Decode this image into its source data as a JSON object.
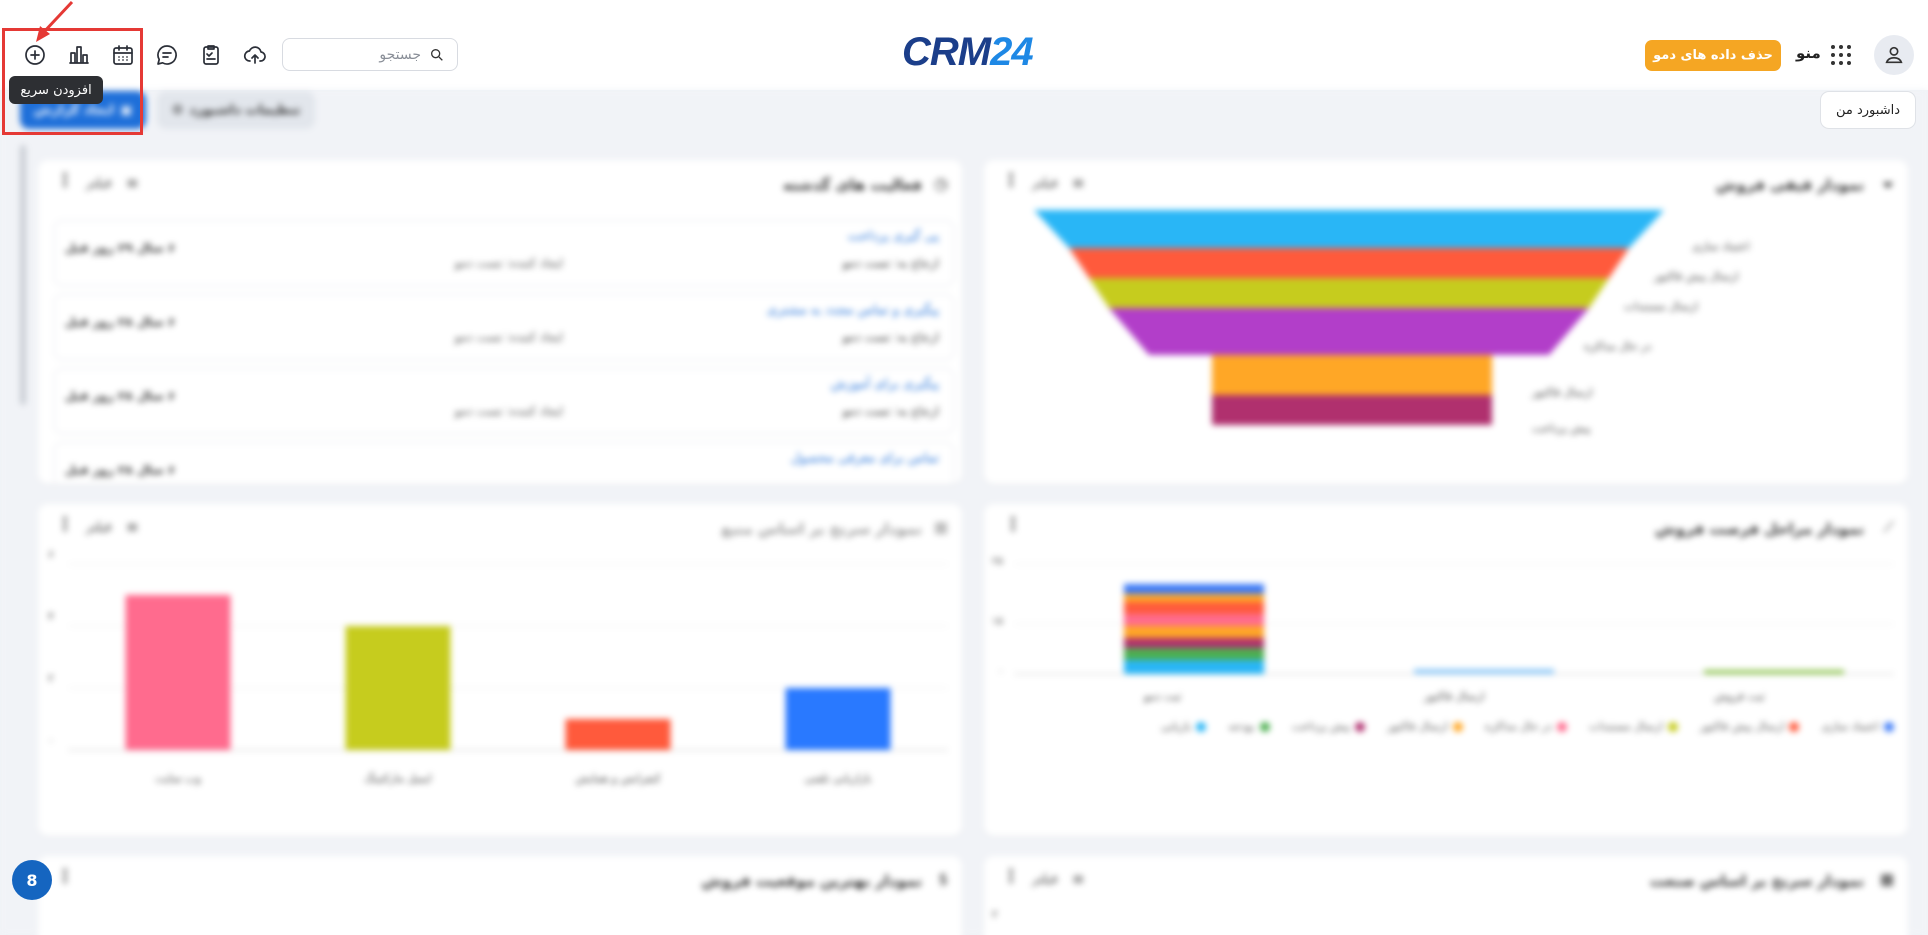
{
  "toolbar": {
    "search_placeholder": "جستجو",
    "tooltip": "افزودن سریع",
    "demo_button": "حذف داده های دمو",
    "menu_label": "منو"
  },
  "logo": {
    "part1": "CRM",
    "part2": "24"
  },
  "dashboard": {
    "my_dashboard": "داشبورد من",
    "settings": "تنظیمات داشبورد",
    "create_report": "ایجاد گزارش"
  },
  "cards": {
    "funnel": {
      "title": "نمودار قیفی فروش",
      "filter": "فیلتر",
      "stages": [
        "اعتماد سازی",
        "ارسال پیش فاکتور",
        "ارسال مستندات",
        "در حال مذاکره",
        "ارسال فاکتور",
        "پیش پرداخت"
      ]
    },
    "activities": {
      "title": "فعالیت های گذشته",
      "filter": "فیلتر",
      "items": [
        {
          "title": "پی گیری پرداخت",
          "ref": "ارجاع به: تست دمو",
          "by": "ایجاد کننده: تست دمو",
          "time": "۶ سال ۲۹ روز قبل"
        },
        {
          "title": "پیگیری و تماس مجدد به مشتری",
          "ref": "ارجاع به: تست دمو",
          "by": "ایجاد کننده: تست دمو",
          "time": "۶ سال ۲۸ روز قبل"
        },
        {
          "title": "پیگیری برای آموزش",
          "ref": "ارجاع به: تست دمو",
          "by": "ایجاد کننده: تست دمو",
          "time": "۶ سال ۲۸ روز قبل"
        },
        {
          "title": "تماس برای معرفی محصول",
          "ref": "",
          "by": "",
          "time": "۶ سال ۲۸ روز قبل"
        }
      ]
    },
    "stages": {
      "title": "نمودار مراحل فرصت فروش",
      "categories": [
        "ثبت دمو",
        "ارسال فاکتور",
        "ثبت فروش"
      ],
      "yticks": [
        "۲۵",
        "۱۵",
        "۰"
      ],
      "legend": [
        "اعتماد سازی",
        "ارسال پیش فاکتور",
        "ارسال مستندات",
        "در حال مذاکره",
        "ارسال فاکتور",
        "پیش پرداخت",
        "بودجه",
        "بازیابی"
      ]
    },
    "source": {
      "title": "نمودار سرنخ بر اساس منبع",
      "filter": "فیلتر",
      "yticks": [
        "۶",
        "۴",
        "۲",
        "۰"
      ],
      "chart_data": {
        "type": "bar",
        "categories": [
          "وب سایت",
          "ایمیل مارکتینگ",
          "کنفرانس و همایش",
          "بازاریابی تلفنی"
        ],
        "values": [
          5,
          4,
          1,
          2
        ],
        "ylim": [
          0,
          6
        ]
      }
    },
    "position": {
      "title": "نمودار بهترین موقعیت فروش"
    },
    "industry": {
      "title": "نمودار سرنخ بر اساس صنعت",
      "filter": "فیلتر",
      "ytick": "۲"
    }
  },
  "colors": {
    "funnel": [
      "#29b6f6",
      "#ff5a3c",
      "#c6cc1e",
      "#b23ec9",
      "#ffa726",
      "#b0306e"
    ],
    "bars": [
      "#ff6b8e",
      "#c6cc1e",
      "#ff5a3c",
      "#2979ff"
    ]
  },
  "chat_badge": "8"
}
